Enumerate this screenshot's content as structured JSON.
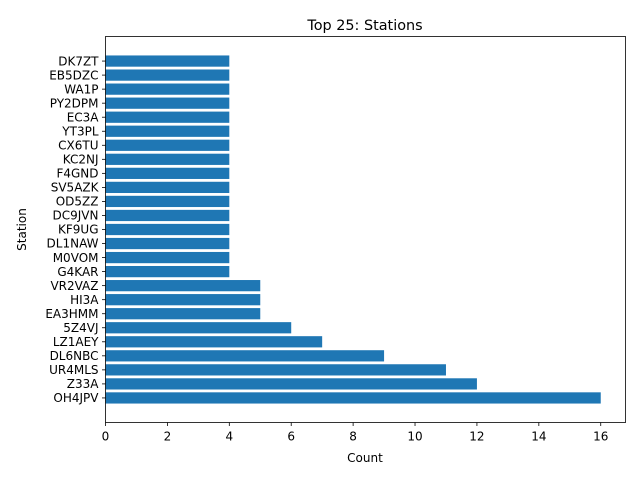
{
  "chart_data": {
    "type": "bar",
    "orientation": "horizontal",
    "title": "Top 25: Stations",
    "xlabel": "Count",
    "ylabel": "Station",
    "xlim": [
      0,
      16.8
    ],
    "xticks": [
      0,
      2,
      4,
      6,
      8,
      10,
      12,
      14,
      16
    ],
    "grid": false,
    "bar_color": "#1f77b4",
    "categories": [
      "OH4JPV",
      "Z33A",
      "UR4MLS",
      "DL6NBC",
      "LZ1AEY",
      "5Z4VJ",
      "EA3HMM",
      "HI3A",
      "VR2VAZ",
      "G4KAR",
      "M0VOM",
      "DL1NAW",
      "KF9UG",
      "DC9JVN",
      "OD5ZZ",
      "SV5AZK",
      "F4GND",
      "KC2NJ",
      "CX6TU",
      "YT3PL",
      "EC3A",
      "PY2DPM",
      "WA1P",
      "EB5DZC",
      "DK7ZT"
    ],
    "values": [
      16,
      12,
      11,
      9,
      7,
      6,
      5,
      5,
      5,
      4,
      4,
      4,
      4,
      4,
      4,
      4,
      4,
      4,
      4,
      4,
      4,
      4,
      4,
      4,
      4
    ]
  }
}
